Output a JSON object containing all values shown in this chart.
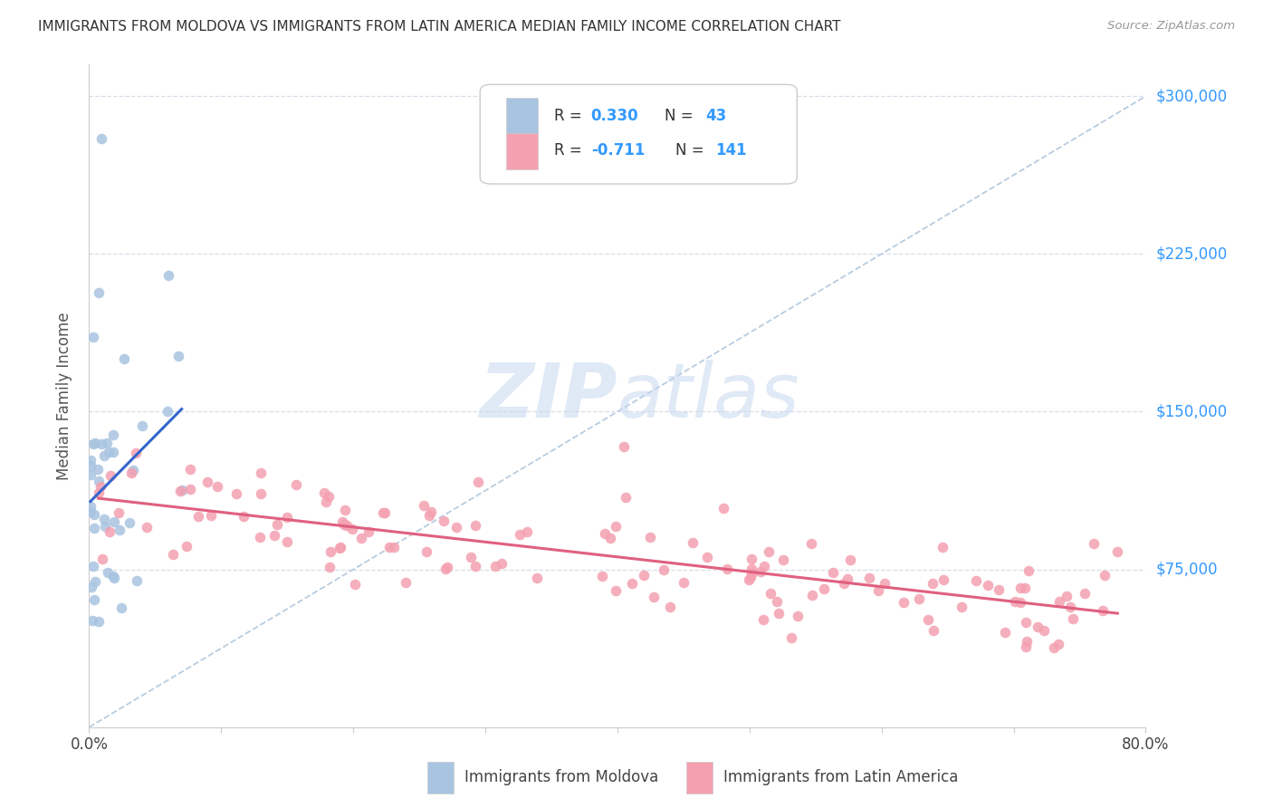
{
  "title": "IMMIGRANTS FROM MOLDOVA VS IMMIGRANTS FROM LATIN AMERICA MEDIAN FAMILY INCOME CORRELATION CHART",
  "source": "Source: ZipAtlas.com",
  "ylabel": "Median Family Income",
  "xmin": 0.0,
  "xmax": 80.0,
  "ymin": 0,
  "ymax": 315000,
  "moldova_R": 0.33,
  "moldova_N": 43,
  "latin_R": -0.711,
  "latin_N": 141,
  "moldova_color": "#a8c4e0",
  "latin_color": "#f4a0b0",
  "moldova_line_color": "#3366cc",
  "latin_line_color": "#e06080",
  "dashed_line_color": "#b8cce0",
  "legend_label_moldova": "Immigrants from Moldova",
  "legend_label_latin": "Immigrants from Latin America",
  "watermark_zip": "ZIP",
  "watermark_atlas": "atlas",
  "watermark_color_zip": "#c8d8f0",
  "watermark_color_atlas": "#c8d8f0",
  "background_color": "#ffffff",
  "grid_color": "#d8dde8",
  "title_color": "#333333",
  "source_color": "#999999",
  "axis_label_color": "#555555",
  "ytick_color": "#3399ff",
  "ytick_vals": [
    75000,
    150000,
    225000,
    300000
  ],
  "ytick_labels": [
    "$75,000",
    "$150,000",
    "$225,000",
    "$300,000"
  ],
  "R_color": "#3399ff",
  "legend_box_color": "#cccccc"
}
